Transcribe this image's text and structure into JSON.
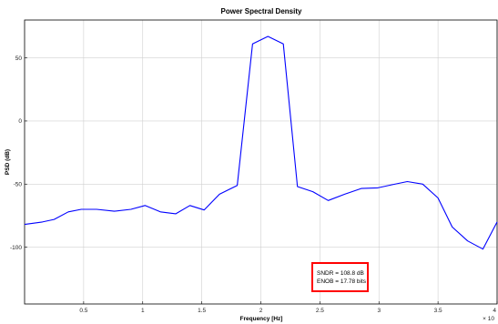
{
  "chart_data": {
    "type": "line",
    "title": "Power Spectral Density",
    "xlabel": "Frequency [Hz]",
    "ylabel": "PSD (dB)",
    "x_multiplier_label": "× 10",
    "xlim": [
      0,
      4
    ],
    "ylim": [
      -145,
      80
    ],
    "grid": true,
    "xticks": [
      0.5,
      1,
      1.5,
      2,
      2.5,
      3,
      3.5,
      4
    ],
    "xtick_labels": [
      "0.5",
      "1",
      "1.5",
      "2",
      "2.5",
      "3",
      "3.5",
      "4"
    ],
    "yticks": [
      50,
      0,
      -50,
      -100
    ],
    "ytick_labels": [
      "50",
      "0",
      "-50",
      "-100"
    ],
    "series": [
      {
        "color": "#0000ff",
        "x": [
          0,
          0.15,
          0.25,
          0.37,
          0.48,
          0.61,
          0.76,
          0.9,
          1.02,
          1.15,
          1.28,
          1.4,
          1.52,
          1.65,
          1.8,
          1.93,
          2.06,
          2.19,
          2.31,
          2.44,
          2.57,
          2.71,
          2.85,
          2.99,
          3.11,
          3.24,
          3.37,
          3.5,
          3.62,
          3.75,
          3.88,
          4.0
        ],
        "values": [
          -82,
          -80,
          -78,
          -72,
          -70,
          -70,
          -71.5,
          -70,
          -67,
          -72,
          -73.5,
          -67,
          -70.5,
          -58,
          -51,
          61,
          67,
          61,
          -52,
          -56,
          -63,
          -58,
          -53.5,
          -53,
          -50.5,
          -48,
          -50,
          -61,
          -84,
          -95,
          -101.5,
          -80
        ]
      }
    ],
    "annotation": {
      "lines": [
        "SNDR = 108.8 dB",
        "ENOB = 17.78 bits"
      ],
      "border_color": "#ff0000"
    }
  }
}
